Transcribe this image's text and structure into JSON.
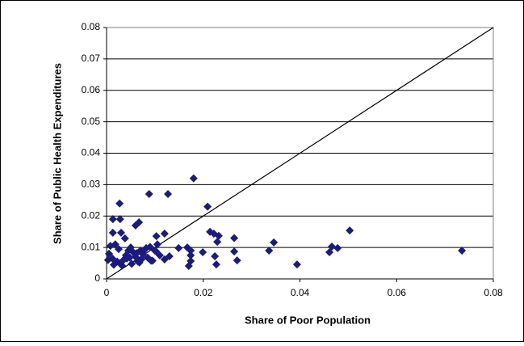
{
  "chart_data": {
    "type": "scatter",
    "x_label": "Share of Poor Population",
    "y_label": "Share of Public Health Expenditures",
    "color": "#1a1a80",
    "xlim": [
      0,
      0.08
    ],
    "ylim": [
      0,
      0.08
    ],
    "xticks": [
      0,
      0.02,
      0.04,
      0.06,
      0.08
    ],
    "yticks": [
      0,
      0.01,
      0.02,
      0.03,
      0.04,
      0.05,
      0.06,
      0.07,
      0.08
    ],
    "grid": true,
    "reference_line": {
      "x": [
        0,
        0.08
      ],
      "y": [
        0,
        0.08
      ]
    },
    "x": [
      0.018,
      0.0088,
      0.0127,
      0.0027,
      0.0209,
      0.0013,
      0.0028,
      0.0067,
      0.006,
      0.0214,
      0.0222,
      0.0232,
      0.0503,
      0.0013,
      0.003,
      0.012,
      0.0264,
      0.0229,
      0.0103,
      0.0346,
      0.0038,
      0.0466,
      0.0478,
      0.0336,
      0.0735,
      0.0461,
      0.0167,
      0.0149,
      0.0174,
      0.0174,
      0.0174,
      0.017,
      0.0199,
      0.0264,
      0.027,
      0.0224,
      0.0227,
      0.0394,
      0.013,
      0.012,
      0.0008,
      0.0018,
      0.0025,
      0.0005,
      0.0012,
      0.0022,
      0.0035,
      0.004,
      0.0045,
      0.005,
      0.0055,
      0.006,
      0.0065,
      0.007,
      0.0075,
      0.008,
      0.0085,
      0.009,
      0.0095,
      0.01,
      0.0105,
      0.011,
      0.0003,
      0.0015,
      0.0032,
      0.0042,
      0.0052,
      0.0062,
      0.0072,
      0.0082,
      0.0092,
      0.0102,
      0.0028,
      0.0048,
      0.0068
    ],
    "values": [
      0.032,
      0.027,
      0.027,
      0.024,
      0.023,
      0.019,
      0.019,
      0.018,
      0.017,
      0.015,
      0.0144,
      0.0137,
      0.0154,
      0.0147,
      0.0147,
      0.0144,
      0.013,
      0.0118,
      0.0136,
      0.0116,
      0.0129,
      0.0103,
      0.0098,
      0.009,
      0.009,
      0.0085,
      0.01,
      0.0098,
      0.009,
      0.0075,
      0.0057,
      0.0041,
      0.0085,
      0.0087,
      0.0059,
      0.0072,
      0.0046,
      0.0046,
      0.0072,
      0.0062,
      0.0105,
      0.011,
      0.0095,
      0.008,
      0.0065,
      0.0055,
      0.006,
      0.0075,
      0.009,
      0.01,
      0.0085,
      0.007,
      0.0055,
      0.009,
      0.0078,
      0.0095,
      0.0068,
      0.0102,
      0.0058,
      0.009,
      0.011,
      0.0075,
      0.006,
      0.0045,
      0.0042,
      0.0065,
      0.0048,
      0.0082,
      0.0062,
      0.0098,
      0.0058,
      0.0088,
      0.005,
      0.0068,
      0.0052
    ]
  }
}
